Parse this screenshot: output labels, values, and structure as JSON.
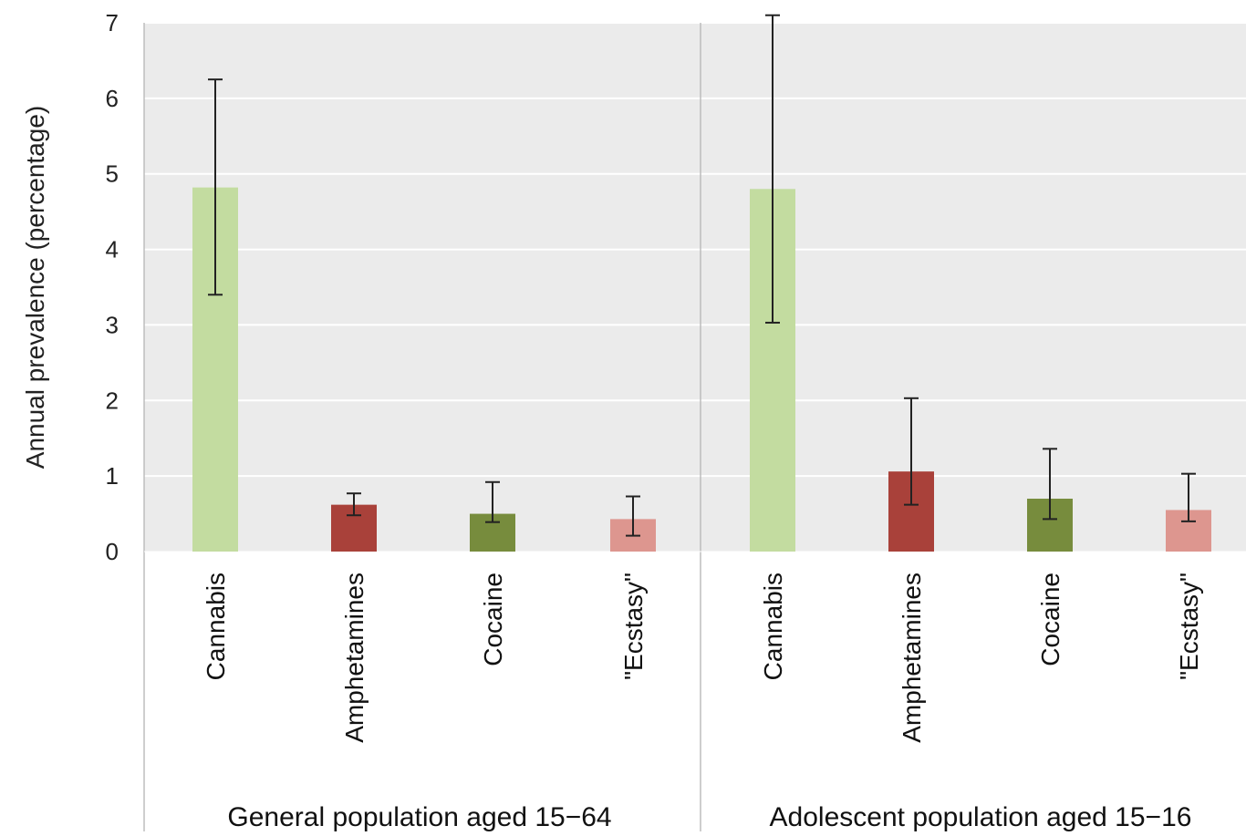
{
  "chart_data": {
    "type": "bar",
    "ylabel": "Annual prevalence (percentage)",
    "ylim": [
      0,
      7
    ],
    "yticks": [
      0,
      1,
      2,
      3,
      4,
      5,
      6,
      7
    ],
    "grid": true,
    "groups": [
      {
        "label": "General population aged 15−64",
        "bars": [
          {
            "category": "Cannabis",
            "value": 4.82,
            "low": 3.4,
            "high": 6.25,
            "color": "#c3dca0"
          },
          {
            "category": "Amphetamines",
            "value": 0.62,
            "low": 0.48,
            "high": 0.77,
            "color": "#a9413a"
          },
          {
            "category": "Cocaine",
            "value": 0.5,
            "low": 0.39,
            "high": 0.92,
            "color": "#778c3d"
          },
          {
            "category": "\"Ecstasy\"",
            "value": 0.43,
            "low": 0.21,
            "high": 0.73,
            "color": "#dd968f"
          }
        ]
      },
      {
        "label": "Adolescent population aged 15−16",
        "bars": [
          {
            "category": "Cannabis",
            "value": 4.8,
            "low": 3.03,
            "high": 7.1,
            "color": "#c3dca0"
          },
          {
            "category": "Amphetamines",
            "value": 1.06,
            "low": 0.62,
            "high": 2.03,
            "color": "#a9413a"
          },
          {
            "category": "Cocaine",
            "value": 0.7,
            "low": 0.43,
            "high": 1.36,
            "color": "#778c3d"
          },
          {
            "category": "\"Ecstasy\"",
            "value": 0.55,
            "low": 0.4,
            "high": 1.03,
            "color": "#dd968f"
          }
        ]
      }
    ]
  }
}
